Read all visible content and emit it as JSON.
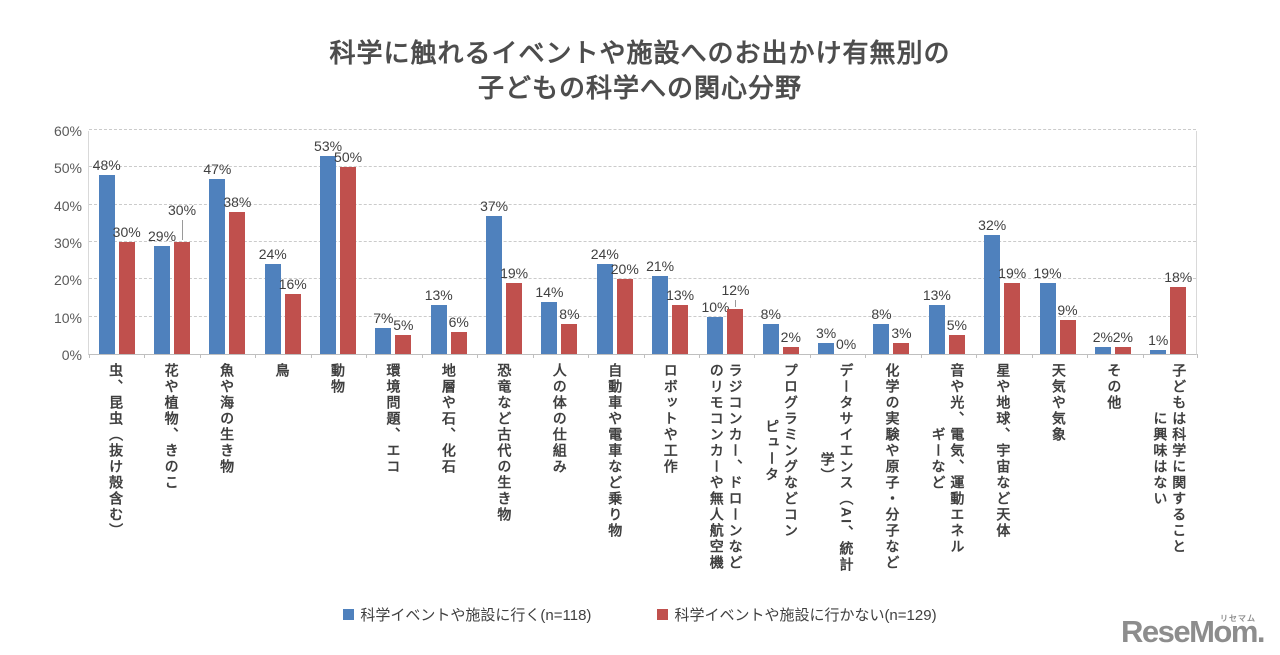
{
  "title": {
    "line1": "科学に触れるイベントや施設へのお出かけ有無別の",
    "line2": "子どもの科学への関心分野"
  },
  "chart_data": {
    "type": "bar",
    "title": "科学に触れるイベントや施設へのお出かけ有無別の子どもの科学への関心分野",
    "xlabel": "",
    "ylabel": "",
    "ylim": [
      0,
      60
    ],
    "yticks": [
      "0%",
      "10%",
      "20%",
      "30%",
      "40%",
      "50%",
      "60%"
    ],
    "grid": "horizontal-dashed",
    "legend_position": "bottom",
    "categories": [
      "虫、昆虫（抜け殻含む）",
      "花や植物、きのこ",
      "魚や海の生き物",
      "鳥",
      "動物",
      "環境問題、エコ",
      "地層や石、化石",
      "恐竜など古代の生き物",
      "人の体の仕組み",
      "自動車や電車など乗り物",
      "ロボットや工作",
      "ラジコンカー、ドローンなど\nのリモコンカーや無人航空機",
      "プログラミングなどコン\nピュータ",
      "データサイエンス（AI、統計\n学）",
      "化学の実験や原子・分子など",
      "音や光、電気、運動エネル\nギーなど",
      "星や地球、宇宙など天体",
      "天気や気象",
      "その他",
      "子どもは科学に関すること\nに興味はない"
    ],
    "series": [
      {
        "name": "科学イベントや施設に行く(n=118)",
        "color": "#4F81BD",
        "values": [
          48,
          29,
          47,
          24,
          53,
          7,
          13,
          37,
          14,
          24,
          21,
          10,
          8,
          3,
          8,
          13,
          32,
          19,
          2,
          1
        ]
      },
      {
        "name": "科学イベントや施設に行かない(n=129)",
        "color": "#C0504D",
        "values": [
          30,
          30,
          38,
          16,
          50,
          5,
          6,
          19,
          8,
          20,
          13,
          12,
          2,
          0,
          3,
          5,
          19,
          9,
          2,
          18
        ]
      }
    ],
    "label_format": "{value}%",
    "label_adjust": [
      {
        "series": 1,
        "index": 1,
        "raise": 22
      },
      {
        "series": 1,
        "index": 11,
        "raise": 9
      }
    ]
  },
  "logo": {
    "brand": "ReseMom.",
    "ruby": "リセマム"
  }
}
